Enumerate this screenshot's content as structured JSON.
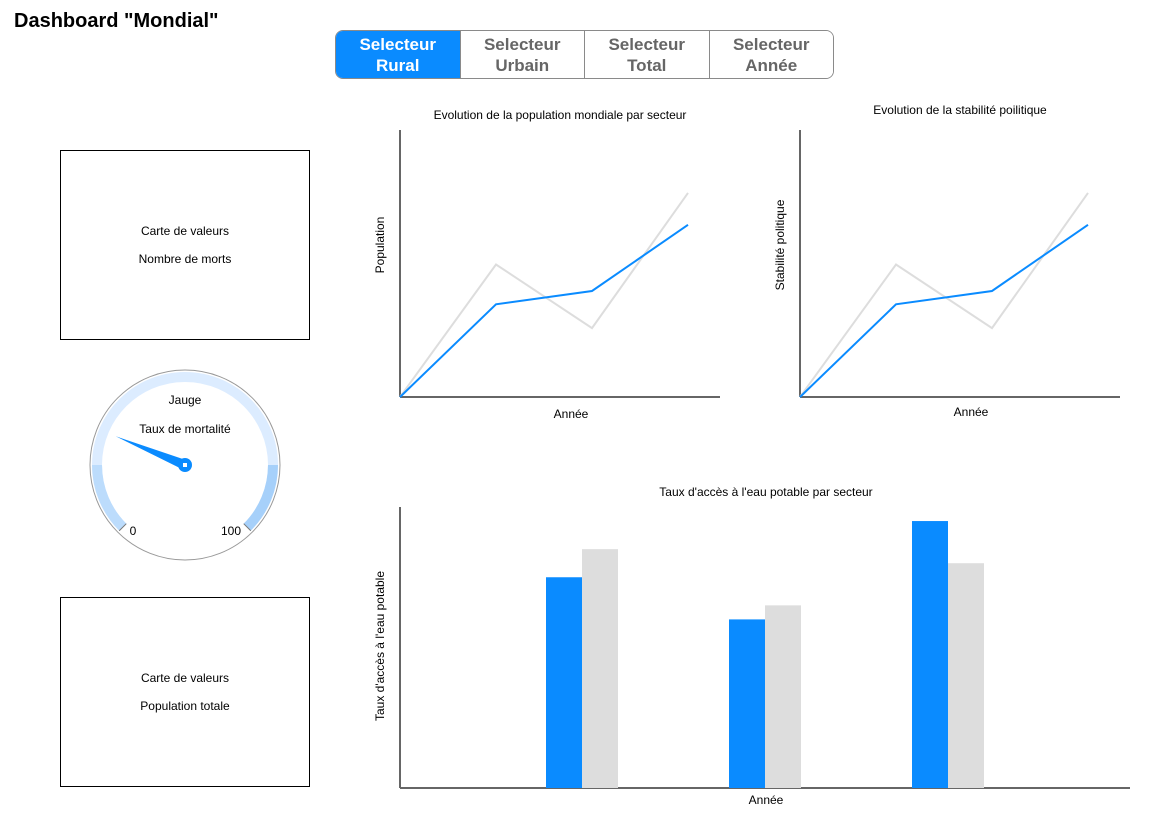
{
  "header": {
    "title": "Dashboard \"Mondial\""
  },
  "selector": {
    "tabs": [
      {
        "label": "Selecteur\nRural",
        "active": true
      },
      {
        "label": "Selecteur\nUrbain",
        "active": false
      },
      {
        "label": "Selecteur\nTotal",
        "active": false
      },
      {
        "label": "Selecteur\nAnnée",
        "active": false
      }
    ],
    "active_color": "#0a8bff"
  },
  "cards": {
    "deaths": {
      "line1": "Carte de valeurs",
      "line2": "Nombre de morts"
    },
    "population": {
      "line1": "Carte de valeurs",
      "line2": "Population totale"
    }
  },
  "gauge": {
    "title": "Jauge",
    "subtitle": "Taux de mortalité",
    "min_label": "0",
    "max_label": "100",
    "value": 25
  },
  "chart_data": [
    {
      "type": "line",
      "title": "Evolution de la population mondiale par secteur",
      "xlabel": "Année",
      "ylabel": "Population",
      "x": [
        0,
        1,
        2,
        3
      ],
      "series": [
        {
          "values": [
            0,
            0.35,
            0.4,
            0.65
          ],
          "color": "#0a8bff"
        },
        {
          "values": [
            0,
            0.5,
            0.26,
            0.77
          ],
          "color": "#dddddd"
        }
      ],
      "ylim": [
        0,
        1
      ]
    },
    {
      "type": "line",
      "title": "Evolution de la stabilité poilitique",
      "xlabel": "Année",
      "ylabel": "Stabilité politique",
      "x": [
        0,
        1,
        2,
        3
      ],
      "series": [
        {
          "values": [
            0,
            0.35,
            0.4,
            0.65
          ],
          "color": "#0a8bff"
        },
        {
          "values": [
            0,
            0.5,
            0.26,
            0.77
          ],
          "color": "#dddddd"
        }
      ],
      "ylim": [
        0,
        1
      ]
    },
    {
      "type": "bar",
      "title": "Taux d'accès à l'eau potable par secteur",
      "xlabel": "Année",
      "ylabel": "Taux d'accès à l'eau potable",
      "categories": [
        "",
        "",
        ""
      ],
      "series": [
        {
          "values": [
            0.75,
            0.6,
            0.95
          ],
          "color": "#0a8bff"
        },
        {
          "values": [
            0.85,
            0.65,
            0.8
          ],
          "color": "#dddddd"
        }
      ],
      "ylim": [
        0,
        1
      ]
    }
  ]
}
